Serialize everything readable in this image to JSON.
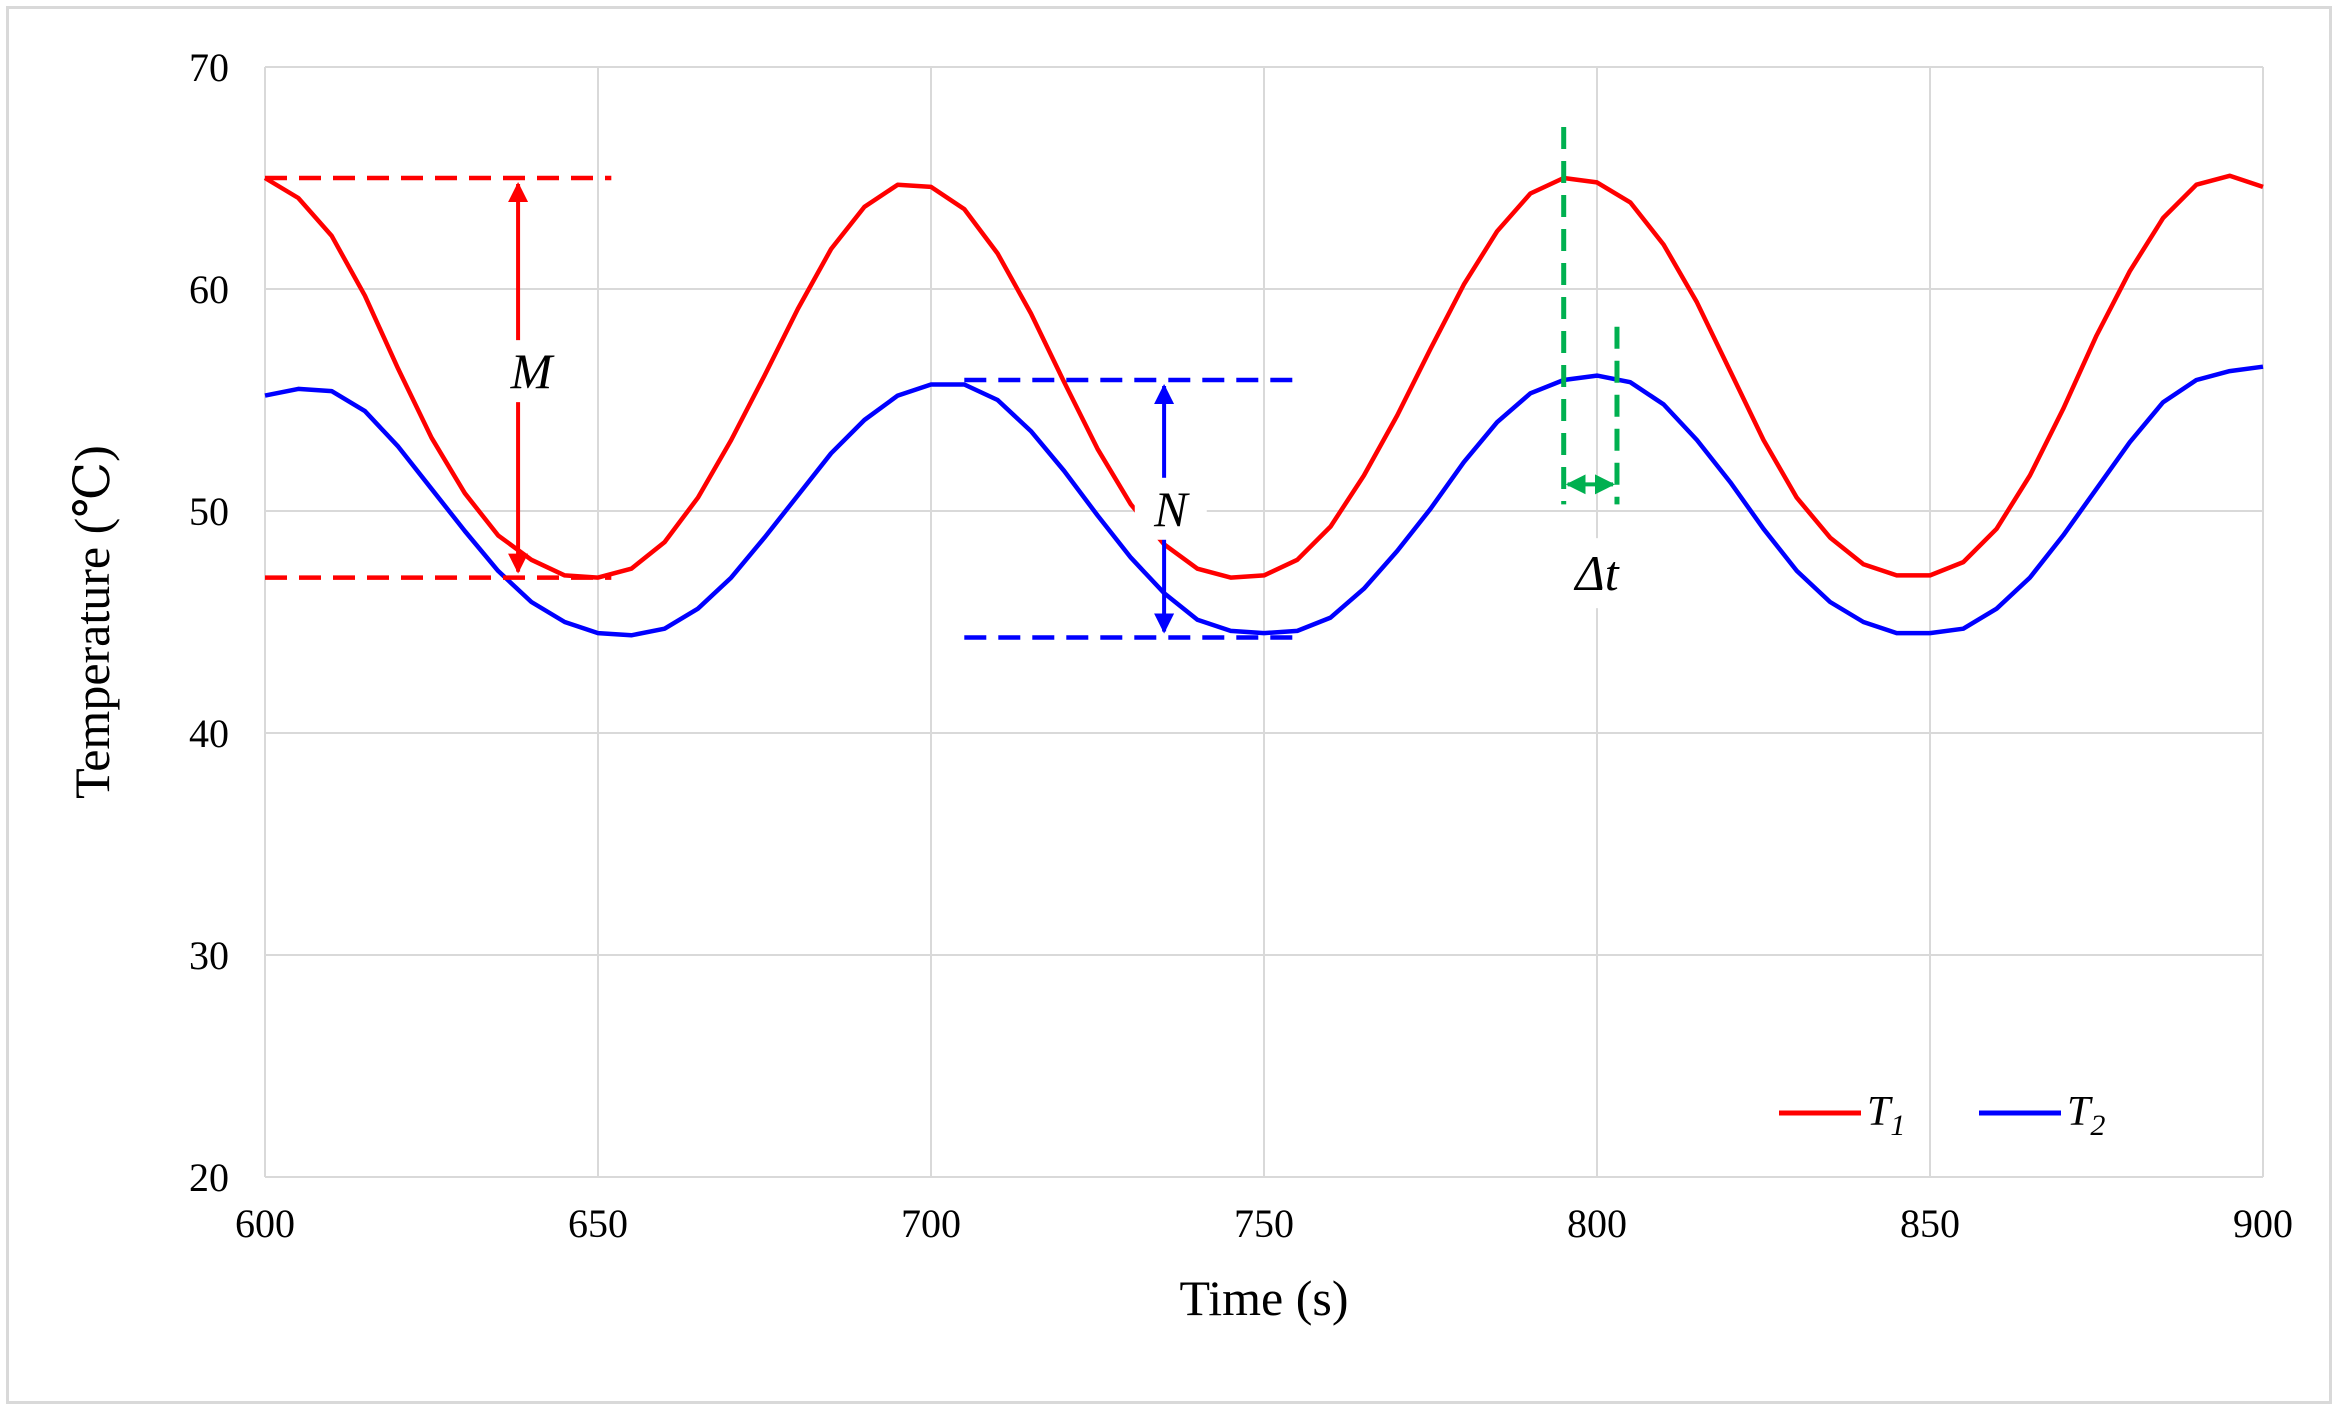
{
  "chart_data": {
    "type": "line",
    "title": "",
    "xlabel": "Time (s)",
    "ylabel": "Temperature (℃)",
    "xlim": [
      600,
      900
    ],
    "ylim": [
      20,
      70
    ],
    "xticks": [
      600,
      650,
      700,
      750,
      800,
      850,
      900
    ],
    "yticks": [
      20,
      30,
      40,
      50,
      60,
      70
    ],
    "grid": true,
    "legend_position": "bottom-right",
    "series": [
      {
        "name": "T1",
        "legend_main": "T",
        "legend_sub": "1",
        "color": "#ff0000",
        "x": [
          600,
          605,
          610,
          615,
          620,
          625,
          630,
          635,
          640,
          645,
          650,
          655,
          660,
          665,
          670,
          675,
          680,
          685,
          690,
          695,
          700,
          705,
          710,
          715,
          720,
          725,
          730,
          735,
          740,
          745,
          750,
          755,
          760,
          765,
          770,
          775,
          780,
          785,
          790,
          795,
          800,
          805,
          810,
          815,
          820,
          825,
          830,
          835,
          840,
          845,
          850,
          855,
          860,
          865,
          870,
          875,
          880,
          885,
          890,
          895,
          900
        ],
        "values": [
          65.0,
          64.1,
          62.4,
          59.7,
          56.4,
          53.3,
          50.8,
          48.9,
          47.8,
          47.1,
          47.0,
          47.4,
          48.6,
          50.6,
          53.2,
          56.1,
          59.1,
          61.8,
          63.7,
          64.7,
          64.6,
          63.6,
          61.6,
          58.9,
          55.8,
          52.8,
          50.3,
          48.5,
          47.4,
          47.0,
          47.1,
          47.8,
          49.3,
          51.6,
          54.3,
          57.3,
          60.2,
          62.6,
          64.3,
          65.0,
          64.8,
          63.9,
          62.0,
          59.4,
          56.3,
          53.2,
          50.6,
          48.8,
          47.6,
          47.1,
          47.1,
          47.7,
          49.2,
          51.6,
          54.6,
          57.9,
          60.8,
          63.2,
          64.7,
          65.1,
          64.6
        ]
      },
      {
        "name": "T2",
        "legend_main": "T",
        "legend_sub": "2",
        "color": "#0000ff",
        "x": [
          600,
          605,
          610,
          615,
          620,
          625,
          630,
          635,
          640,
          645,
          650,
          655,
          660,
          665,
          670,
          675,
          680,
          685,
          690,
          695,
          700,
          705,
          710,
          715,
          720,
          725,
          730,
          735,
          740,
          745,
          750,
          755,
          760,
          765,
          770,
          775,
          780,
          785,
          790,
          795,
          800,
          805,
          810,
          815,
          820,
          825,
          830,
          835,
          840,
          845,
          850,
          855,
          860,
          865,
          870,
          875,
          880,
          885,
          890,
          895,
          900
        ],
        "values": [
          55.2,
          55.5,
          55.4,
          54.5,
          52.9,
          51.0,
          49.1,
          47.3,
          45.9,
          45.0,
          44.5,
          44.4,
          44.7,
          45.6,
          47.0,
          48.8,
          50.7,
          52.6,
          54.1,
          55.2,
          55.7,
          55.7,
          55.0,
          53.6,
          51.8,
          49.8,
          47.9,
          46.3,
          45.1,
          44.6,
          44.5,
          44.6,
          45.2,
          46.5,
          48.2,
          50.1,
          52.2,
          54.0,
          55.3,
          55.9,
          56.1,
          55.8,
          54.8,
          53.2,
          51.3,
          49.2,
          47.3,
          45.9,
          45.0,
          44.5,
          44.5,
          44.7,
          45.6,
          47.0,
          48.9,
          51.0,
          53.1,
          54.9,
          55.9,
          56.3,
          56.5
        ]
      }
    ],
    "annotations": [
      {
        "label": "M",
        "series": "T1",
        "kind": "amplitude",
        "x": 638,
        "from": 47.0,
        "to": 65.0,
        "guide_x0": 600,
        "guide_x1": 652,
        "color": "#ff0000",
        "label_x": 640,
        "label_y": 56.3
      },
      {
        "label": "N",
        "series": "T2",
        "kind": "amplitude",
        "x": 735,
        "from": 44.3,
        "to": 55.9,
        "guide_x0": 705,
        "guide_x1": 756,
        "color": "#0000ff",
        "label_x": 736,
        "label_y": 50.1
      },
      {
        "label": "Δt",
        "kind": "phase-lag",
        "x0": 795,
        "x1": 803,
        "y": 51.2,
        "top0": 67.3,
        "top1": 58.3,
        "bottom": 50.3,
        "color": "#00b050",
        "label_x": 800,
        "label_y": 47.2
      }
    ]
  }
}
